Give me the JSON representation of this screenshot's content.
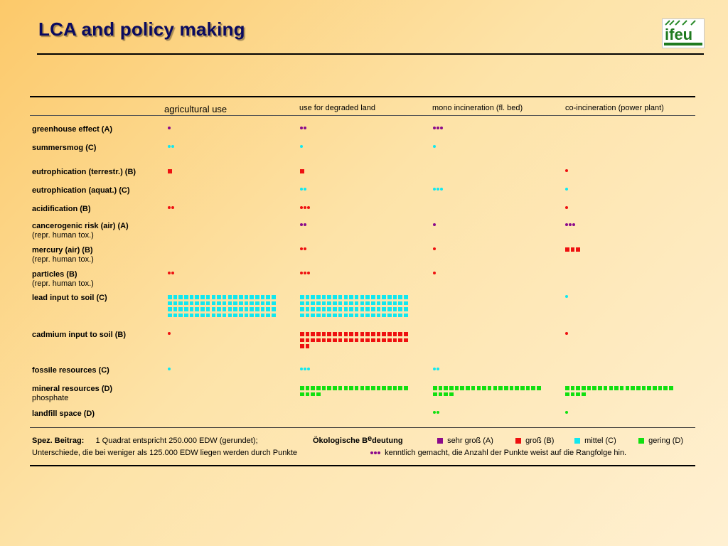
{
  "title": "LCA and policy making",
  "logo_text": "ifeu",
  "colors": {
    "purple": "#8b0a8b",
    "red": "#ee1010",
    "cyan": "#10e8f0",
    "green": "#10e010"
  },
  "columns": [
    "agricultural use",
    "use for degraded land",
    "mono incineration (fl. bed)",
    "co-incineration (power plant)"
  ],
  "rows": [
    {
      "label": "greenhouse effect (A)",
      "sub": "",
      "cells": [
        {
          "color": "purple",
          "kind": "dot",
          "count": 1
        },
        {
          "color": "purple",
          "kind": "dot",
          "count": 2
        },
        {
          "color": "purple",
          "kind": "dot",
          "count": 3
        },
        null
      ]
    },
    {
      "label": "summersmog (C)",
      "sub": "",
      "cells": [
        {
          "color": "cyan",
          "kind": "dot",
          "count": 2
        },
        {
          "color": "cyan",
          "kind": "dot",
          "count": 1
        },
        {
          "color": "cyan",
          "kind": "dot",
          "count": 1
        },
        null
      ]
    },
    {
      "label": "eutrophication (terrestr.) (B)",
      "sub": "",
      "cells": [
        {
          "color": "red",
          "kind": "square",
          "count": 1
        },
        {
          "color": "red",
          "kind": "square",
          "count": 1
        },
        null,
        {
          "color": "red",
          "kind": "dot",
          "count": 1
        }
      ]
    },
    {
      "label": "eutrophication (aquat.) (C)",
      "sub": "",
      "cells": [
        null,
        {
          "color": "cyan",
          "kind": "dot",
          "count": 2
        },
        {
          "color": "cyan",
          "kind": "dot",
          "count": 3
        },
        {
          "color": "cyan",
          "kind": "dot",
          "count": 1
        }
      ]
    },
    {
      "label": "acidification (B)",
      "sub": "",
      "cells": [
        {
          "color": "red",
          "kind": "dot",
          "count": 2
        },
        {
          "color": "red",
          "kind": "dot",
          "count": 3
        },
        null,
        {
          "color": "red",
          "kind": "dot",
          "count": 1
        }
      ]
    },
    {
      "label": "cancerogenic risk (air) (A)",
      "sub": "(repr. human tox.)",
      "cells": [
        null,
        {
          "color": "purple",
          "kind": "dot",
          "count": 2
        },
        {
          "color": "purple",
          "kind": "dot",
          "count": 1
        },
        {
          "color": "purple",
          "kind": "dot",
          "count": 3
        }
      ]
    },
    {
      "label": "mercury (air) (B)",
      "sub": "(repr. human tox.)",
      "cells": [
        null,
        {
          "color": "red",
          "kind": "dot",
          "count": 2
        },
        {
          "color": "red",
          "kind": "dot",
          "count": 1
        },
        {
          "color": "red",
          "kind": "square",
          "count": 3
        }
      ]
    },
    {
      "label": "particles (B)",
      "sub": "(repr. human tox.)",
      "cells": [
        {
          "color": "red",
          "kind": "dot",
          "count": 2
        },
        {
          "color": "red",
          "kind": "dot",
          "count": 3
        },
        {
          "color": "red",
          "kind": "dot",
          "count": 1
        },
        null
      ]
    },
    {
      "label": "lead input to soil (C)",
      "sub": "",
      "cells": [
        {
          "color": "cyan",
          "kind": "square",
          "count": 80
        },
        {
          "color": "cyan",
          "kind": "square",
          "count": 80
        },
        null,
        {
          "color": "cyan",
          "kind": "dot",
          "count": 1
        }
      ]
    },
    {
      "label": "cadmium input to soil (B)",
      "sub": "",
      "cells": [
        {
          "color": "red",
          "kind": "dot",
          "count": 1
        },
        {
          "color": "red",
          "kind": "square",
          "count": 42
        },
        null,
        {
          "color": "red",
          "kind": "dot",
          "count": 1
        }
      ]
    },
    {
      "label": "fossile resources (C)",
      "sub": "",
      "cells": [
        {
          "color": "cyan",
          "kind": "dot",
          "count": 1
        },
        {
          "color": "cyan",
          "kind": "dot",
          "count": 3
        },
        {
          "color": "cyan",
          "kind": "dot",
          "count": 2
        },
        null
      ]
    },
    {
      "label": "mineral resources (D)",
      "sub": "phosphate",
      "cells": [
        null,
        {
          "color": "green",
          "kind": "square",
          "count": 24
        },
        {
          "color": "green",
          "kind": "square",
          "count": 24
        },
        {
          "color": "green",
          "kind": "square",
          "count": 24
        }
      ]
    },
    {
      "label": "landfill space (D)",
      "sub": "",
      "cells": [
        null,
        null,
        {
          "color": "green",
          "kind": "dot",
          "count": 2
        },
        {
          "color": "green",
          "kind": "dot",
          "count": 1
        }
      ]
    }
  ],
  "footnote": {
    "spez_label": "Spez. Beitrag:",
    "spez_text": "1 Quadrat entspricht 250.000 EDW (gerundet);",
    "oeko_label_a": "Ökologische B",
    "oeko_label_e": "e",
    "oeko_label_b": "deutung",
    "legend": [
      {
        "color": "purple",
        "label": "sehr groß (A)"
      },
      {
        "color": "red",
        "label": "groß  (B)"
      },
      {
        "color": "cyan",
        "label": "mittel (C)"
      },
      {
        "color": "green",
        "label": "gering (D)"
      }
    ],
    "line2_a": "Unterschiede, die bei weniger als 125.000 EDW liegen werden durch Punkte",
    "line2_b": "kenntlich gemacht, die Anzahl der Punkte weist auf die Rangfolge hin."
  }
}
